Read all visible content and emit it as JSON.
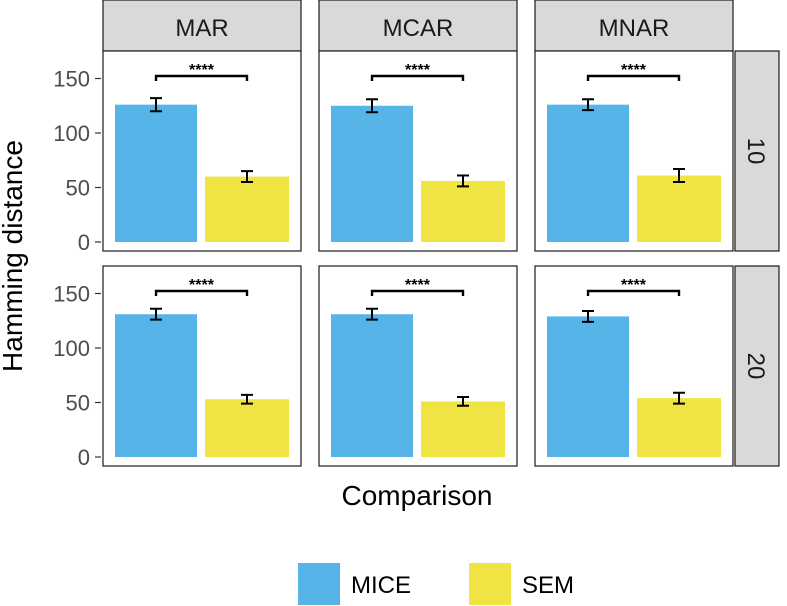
{
  "chart_data": {
    "type": "bar",
    "xlabel": "Comparison",
    "ylabel": "Hamming distance",
    "ylim": [
      0,
      160
    ],
    "yticks": [
      0,
      50,
      100,
      150
    ],
    "column_facets": [
      "MAR",
      "MCAR",
      "MNAR"
    ],
    "row_facets": [
      "10",
      "20"
    ],
    "categories": [
      "MICE",
      "SEM"
    ],
    "colors": {
      "MICE": "#56b4e9",
      "SEM": "#f0e442"
    },
    "panels": [
      {
        "col": "MAR",
        "row": "10",
        "values": [
          126,
          60
        ],
        "errors": [
          6,
          5
        ],
        "significance": "****"
      },
      {
        "col": "MCAR",
        "row": "10",
        "values": [
          125,
          56
        ],
        "errors": [
          6,
          5
        ],
        "significance": "****"
      },
      {
        "col": "MNAR",
        "row": "10",
        "values": [
          126,
          61
        ],
        "errors": [
          5,
          6
        ],
        "significance": "****"
      },
      {
        "col": "MAR",
        "row": "20",
        "values": [
          131,
          53
        ],
        "errors": [
          5,
          4
        ],
        "significance": "****"
      },
      {
        "col": "MCAR",
        "row": "20",
        "values": [
          131,
          51
        ],
        "errors": [
          5,
          4
        ],
        "significance": "****"
      },
      {
        "col": "MNAR",
        "row": "20",
        "values": [
          129,
          54
        ],
        "errors": [
          5,
          5
        ],
        "significance": "****"
      }
    ],
    "legend": {
      "position": "bottom",
      "entries": [
        "MICE",
        "SEM"
      ]
    },
    "grid": false
  }
}
